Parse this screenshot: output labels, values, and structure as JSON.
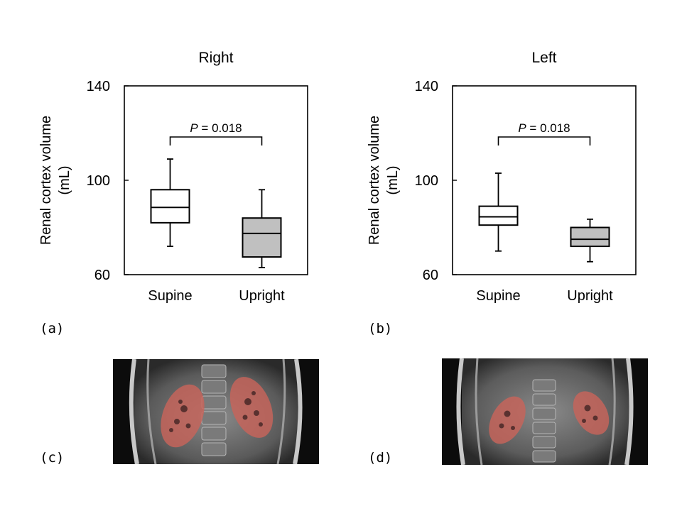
{
  "panels": [
    {
      "letter": "(a)"
    },
    {
      "letter": "(b)"
    },
    {
      "letter": "(c)"
    },
    {
      "letter": "(d)"
    }
  ],
  "chart_data": [
    {
      "type": "box",
      "title": "Right",
      "ylabel_line1": "Renal cortex volume",
      "ylabel_line2": "(mL)",
      "ylim": [
        60,
        140
      ],
      "yticks": [
        "60",
        "100",
        "140"
      ],
      "categories": [
        "Supine",
        "Upright"
      ],
      "boxes": [
        {
          "category": "Supine",
          "min": 72,
          "q1": 82,
          "median": 88.5,
          "q3": 96,
          "max": 109,
          "fill": "#ffffff"
        },
        {
          "category": "Upright",
          "min": 63,
          "q1": 67.5,
          "median": 77.5,
          "q3": 84,
          "max": 96,
          "fill": "#c0c0c0"
        }
      ],
      "annotation": {
        "italic": "P",
        "text": " = 0.018"
      },
      "grid": false
    },
    {
      "type": "box",
      "title": "Left",
      "ylabel_line1": "Renal cortex volume",
      "ylabel_line2": "(mL)",
      "ylim": [
        60,
        140
      ],
      "yticks": [
        "60",
        "100",
        "140"
      ],
      "categories": [
        "Supine",
        "Upright"
      ],
      "boxes": [
        {
          "category": "Supine",
          "min": 70,
          "q1": 81,
          "median": 84.5,
          "q3": 89,
          "max": 103,
          "fill": "#ffffff"
        },
        {
          "category": "Upright",
          "min": 65.5,
          "q1": 72,
          "median": 75,
          "q3": 80,
          "max": 83.5,
          "fill": "#c0c0c0"
        }
      ],
      "annotation": {
        "italic": "P",
        "text": " = 0.018"
      },
      "grid": false
    }
  ],
  "colors": {
    "axis": "#000000",
    "supine_fill": "#ffffff",
    "upright_fill": "#c0c0c0",
    "kidney_overlay": "#c8645a"
  }
}
